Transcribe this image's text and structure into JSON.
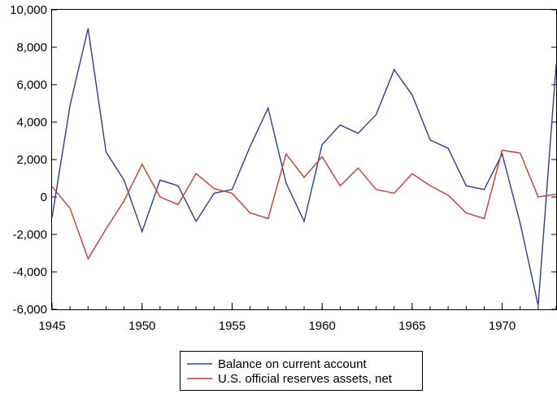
{
  "chart_data": {
    "type": "line",
    "title": "",
    "xlabel": "",
    "ylabel": "",
    "x": [
      1945,
      1946,
      1947,
      1948,
      1949,
      1950,
      1951,
      1952,
      1953,
      1954,
      1955,
      1956,
      1957,
      1958,
      1959,
      1960,
      1961,
      1962,
      1963,
      1964,
      1965,
      1966,
      1967,
      1968,
      1969,
      1970,
      1971,
      1972,
      1973
    ],
    "xlim": [
      1945,
      1973
    ],
    "ylim": [
      -6000,
      10000
    ],
    "x_ticks": [
      {
        "value": 1945,
        "label": "1945"
      },
      {
        "value": 1950,
        "label": "1950"
      },
      {
        "value": 1955,
        "label": "1955"
      },
      {
        "value": 1960,
        "label": "1960"
      },
      {
        "value": 1965,
        "label": "1965"
      },
      {
        "value": 1970,
        "label": "1970"
      }
    ],
    "y_ticks": [
      {
        "value": 10000,
        "label": "10,000"
      },
      {
        "value": 8000,
        "label": "8,000"
      },
      {
        "value": 6000,
        "label": "6,000"
      },
      {
        "value": 4000,
        "label": "4,000"
      },
      {
        "value": 2000,
        "label": "2,000"
      },
      {
        "value": 0,
        "label": "0"
      },
      {
        "value": -2000,
        "label": "-2,000"
      },
      {
        "value": -4000,
        "label": "-4,000"
      },
      {
        "value": -6000,
        "label": "-6,000"
      }
    ],
    "grid": false,
    "legend_position": "bottom-center",
    "series": [
      {
        "name": "Balance on current account",
        "color": "#2b3d9a",
        "values": [
          -1100,
          4900,
          9000,
          2400,
          900,
          -1850,
          900,
          600,
          -1300,
          200,
          400,
          2700,
          4750,
          750,
          -1300,
          2800,
          3850,
          3400,
          4400,
          6800,
          5450,
          3050,
          2600,
          600,
          400,
          2300,
          -1400,
          -5800,
          7100
        ]
      },
      {
        "name": "U.S. official reserves assets, net",
        "color": "#d2372c",
        "values": [
          550,
          -600,
          -3300,
          -1700,
          -200,
          1750,
          0,
          -400,
          1250,
          450,
          200,
          -850,
          -1150,
          2300,
          1050,
          2150,
          600,
          1550,
          400,
          200,
          1250,
          600,
          100,
          -850,
          -1150,
          2500,
          2350,
          0,
          150
        ]
      }
    ]
  }
}
